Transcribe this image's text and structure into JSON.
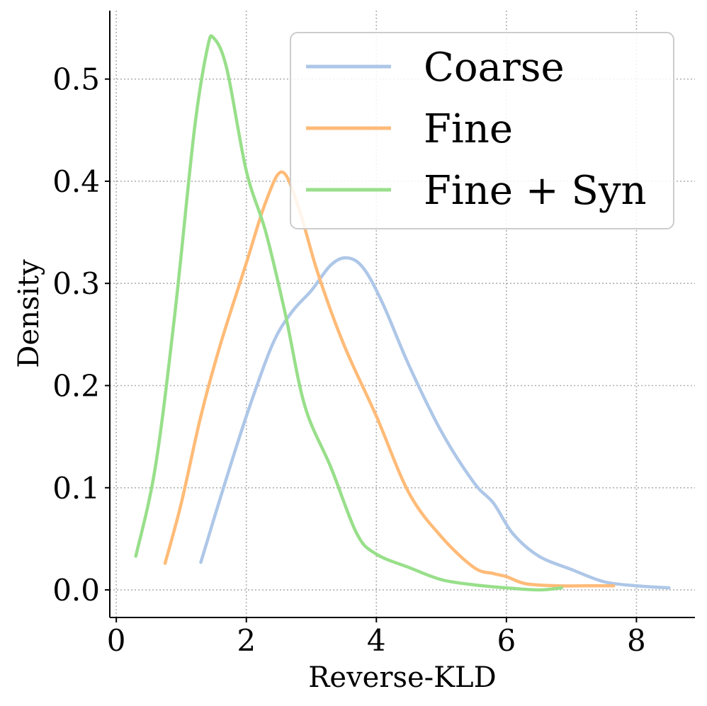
{
  "chart_data": {
    "type": "line",
    "title": "",
    "xlabel": "Reverse-KLD",
    "ylabel": "Density",
    "xlim": [
      -0.1,
      8.9
    ],
    "ylim": [
      -0.027,
      0.567
    ],
    "xticks": [
      0,
      2,
      4,
      6,
      8
    ],
    "yticks": [
      0.0,
      0.1,
      0.2,
      0.3,
      0.4,
      0.5
    ],
    "xtick_labels": [
      "0",
      "2",
      "4",
      "6",
      "8"
    ],
    "ytick_labels": [
      "0.0",
      "0.1",
      "0.2",
      "0.3",
      "0.4",
      "0.5"
    ],
    "grid": true,
    "legend_position": "top-right",
    "series": [
      {
        "name": "Coarse",
        "color": "#aec7e8",
        "x": [
          1.3,
          1.6,
          2.0,
          2.4,
          2.7,
          3.0,
          3.3,
          3.55,
          3.8,
          4.1,
          4.5,
          5.0,
          5.5,
          5.8,
          6.1,
          6.5,
          7.0,
          7.5,
          8.0,
          8.5
        ],
        "y": [
          0.027,
          0.09,
          0.17,
          0.24,
          0.272,
          0.293,
          0.318,
          0.325,
          0.315,
          0.28,
          0.22,
          0.155,
          0.105,
          0.085,
          0.055,
          0.033,
          0.02,
          0.008,
          0.004,
          0.002
        ]
      },
      {
        "name": "Fine",
        "color": "#ffbb78",
        "x": [
          0.75,
          1.0,
          1.3,
          1.6,
          2.0,
          2.3,
          2.55,
          2.8,
          3.1,
          3.5,
          4.0,
          4.5,
          5.0,
          5.5,
          5.8,
          6.0,
          6.3,
          6.8,
          7.2,
          7.65
        ],
        "y": [
          0.026,
          0.085,
          0.17,
          0.24,
          0.32,
          0.38,
          0.409,
          0.375,
          0.31,
          0.24,
          0.17,
          0.095,
          0.052,
          0.022,
          0.016,
          0.013,
          0.006,
          0.004,
          0.004,
          0.004
        ]
      },
      {
        "name": "Fine + Syn",
        "color": "#98df8a",
        "x": [
          0.3,
          0.6,
          0.9,
          1.2,
          1.4,
          1.5,
          1.7,
          2.0,
          2.3,
          2.6,
          2.9,
          3.3,
          3.7,
          4.0,
          4.5,
          5.0,
          5.5,
          6.0,
          6.5,
          6.85
        ],
        "y": [
          0.033,
          0.12,
          0.27,
          0.45,
          0.53,
          0.54,
          0.51,
          0.41,
          0.35,
          0.27,
          0.18,
          0.12,
          0.055,
          0.035,
          0.022,
          0.01,
          0.005,
          0.002,
          0.0,
          0.002
        ]
      }
    ]
  }
}
